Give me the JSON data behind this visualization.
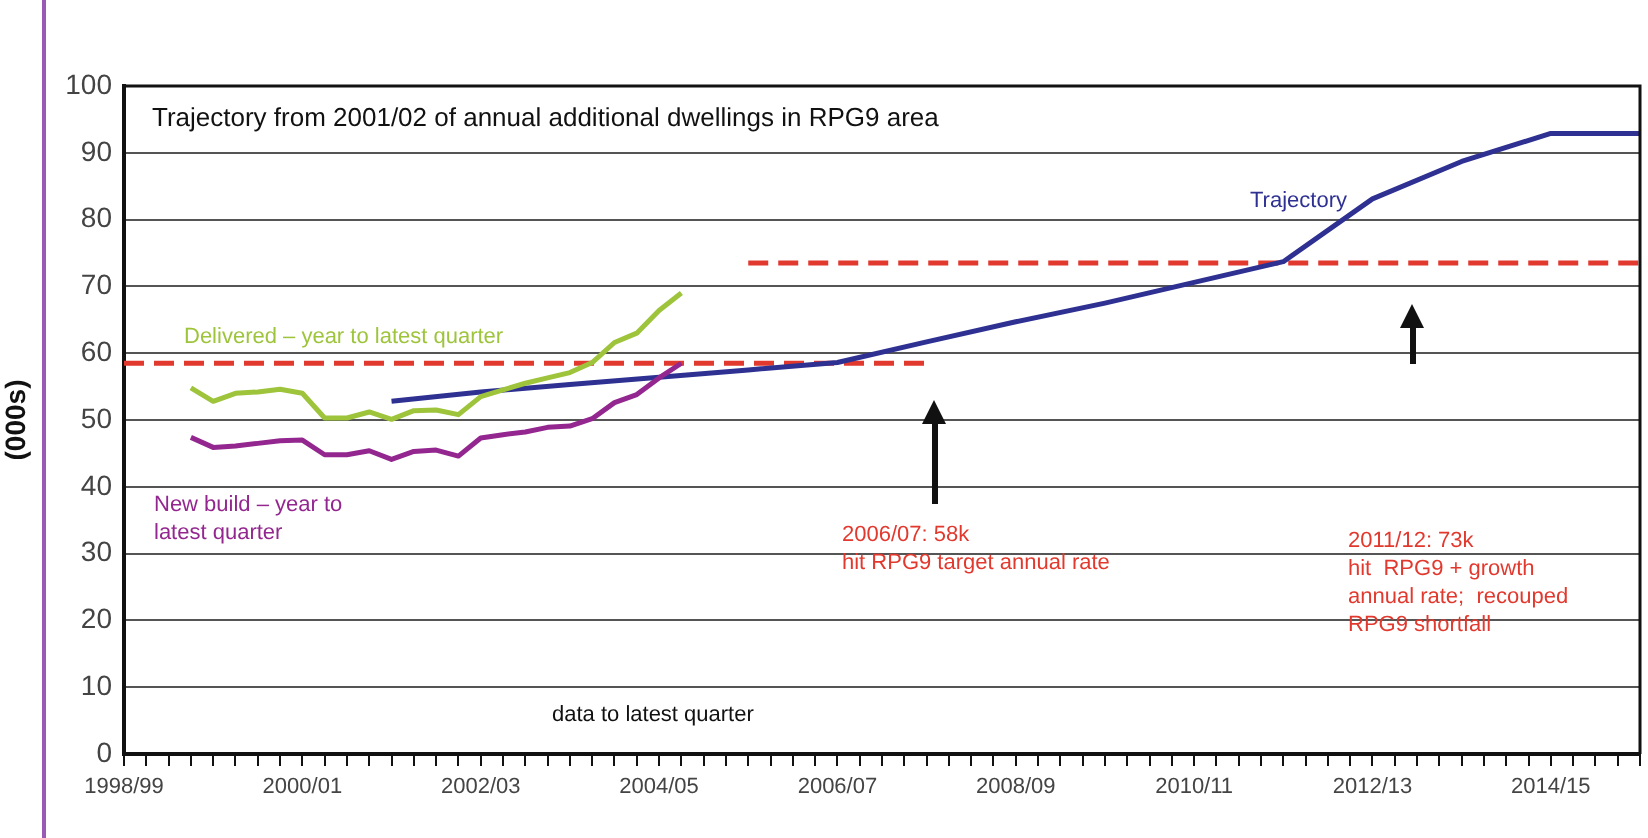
{
  "chart_data": {
    "type": "line",
    "title": "Trajectory from 2001/02 of annual additional dwellings in RPG9 area",
    "ylabel": "(000s)",
    "categories": [
      "1998/99",
      null,
      null,
      null,
      null,
      null,
      null,
      null,
      "2000/01",
      null,
      null,
      null,
      null,
      null,
      null,
      null,
      "2002/03",
      null,
      null,
      null,
      null,
      null,
      null,
      null,
      "2004/05",
      null,
      null,
      null,
      null,
      null,
      null,
      null,
      "2006/07",
      null,
      null,
      null,
      null,
      null,
      null,
      null,
      "2008/09",
      null,
      null,
      null,
      null,
      null,
      null,
      null,
      "2010/11",
      null,
      null,
      null,
      null,
      null,
      null,
      null,
      "2012/13",
      null,
      null,
      null,
      null,
      null,
      null,
      null,
      "2014/15",
      null,
      null,
      null,
      null
    ],
    "series": [
      {
        "name": "Delivered – year to latest quarter",
        "color": "#9dc43b",
        "values": [
          null,
          null,
          null,
          54.8,
          52.8,
          54.0,
          54.2,
          54.6,
          54.0,
          50.3,
          50.3,
          51.2,
          50.1,
          51.4,
          51.5,
          50.8,
          53.5,
          54.5,
          55.5,
          56.3,
          57.1,
          58.6,
          61.6,
          63.0,
          66.4,
          69.0,
          null,
          null,
          null,
          null,
          null,
          null,
          null,
          null,
          null,
          null,
          null,
          null,
          null,
          null,
          null,
          null,
          null,
          null,
          null,
          null,
          null,
          null,
          null,
          null,
          null,
          null,
          null,
          null,
          null,
          null,
          null,
          null,
          null,
          null,
          null,
          null,
          null,
          null,
          null,
          null,
          null,
          null,
          null
        ]
      },
      {
        "name": "New build – year to latest quarter",
        "color": "#93278f",
        "values": [
          null,
          null,
          null,
          47.4,
          45.9,
          46.1,
          46.5,
          46.9,
          47.0,
          44.8,
          44.8,
          45.4,
          44.1,
          45.3,
          45.5,
          44.6,
          47.3,
          47.8,
          48.2,
          48.9,
          49.1,
          50.2,
          52.6,
          53.8,
          56.3,
          58.5,
          null,
          null,
          null,
          null,
          null,
          null,
          null,
          null,
          null,
          null,
          null,
          null,
          null,
          null,
          null,
          null,
          null,
          null,
          null,
          null,
          null,
          null,
          null,
          null,
          null,
          null,
          null,
          null,
          null,
          null,
          null,
          null,
          null,
          null,
          null,
          null,
          null,
          null,
          null,
          null,
          null,
          null,
          null
        ]
      },
      {
        "name": "Trajectory",
        "color": "#2e3192",
        "values": [
          null,
          null,
          null,
          null,
          null,
          null,
          null,
          null,
          null,
          null,
          null,
          null,
          52.8,
          null,
          null,
          null,
          54.2,
          null,
          null,
          null,
          55.3,
          null,
          null,
          null,
          56.4,
          null,
          null,
          null,
          57.5,
          null,
          null,
          null,
          58.6,
          null,
          null,
          null,
          61.7,
          null,
          null,
          null,
          64.7,
          null,
          null,
          null,
          67.5,
          null,
          null,
          null,
          70.6,
          null,
          null,
          null,
          73.7,
          null,
          null,
          null,
          83.1,
          null,
          null,
          null,
          88.7,
          null,
          null,
          null,
          92.9,
          null,
          null,
          null,
          92.9
        ]
      },
      {
        "color": "#e2392e",
        "line_style": "dashed",
        "values": [
          58.5,
          null,
          null,
          null,
          null,
          null,
          null,
          null,
          null,
          null,
          null,
          null,
          null,
          null,
          null,
          null,
          null,
          null,
          null,
          null,
          null,
          null,
          null,
          null,
          null,
          null,
          null,
          null,
          null,
          null,
          null,
          null,
          null,
          null,
          null,
          null,
          58.5,
          null,
          null,
          null,
          null,
          null,
          null,
          null,
          null,
          null,
          null,
          null,
          null,
          null,
          null,
          null,
          null,
          null,
          null,
          null,
          null,
          null,
          null,
          null,
          null,
          null,
          null,
          null,
          null,
          null,
          null,
          null,
          null
        ]
      },
      {
        "color": "#e2392e",
        "line_style": "dashed",
        "values": [
          null,
          null,
          null,
          null,
          null,
          null,
          null,
          null,
          null,
          null,
          null,
          null,
          null,
          null,
          null,
          null,
          null,
          null,
          null,
          null,
          null,
          null,
          null,
          null,
          null,
          null,
          null,
          null,
          73.5,
          null,
          null,
          null,
          null,
          null,
          null,
          null,
          null,
          null,
          null,
          null,
          null,
          null,
          null,
          null,
          null,
          null,
          null,
          null,
          null,
          null,
          null,
          null,
          null,
          null,
          null,
          null,
          null,
          null,
          null,
          null,
          null,
          null,
          null,
          null,
          null,
          null,
          null,
          null,
          73.5
        ]
      }
    ],
    "ylim": [
      0,
      100
    ],
    "yticks": [
      0,
      10,
      20,
      30,
      40,
      50,
      60,
      70,
      80,
      90,
      100
    ],
    "grid": "y",
    "legend": false,
    "marker": "none",
    "line_style": "solid",
    "annotations": [
      "data to latest quarter",
      "2006/07: 58k\nhit RPG9 target annual rate",
      "2011/12: 73k\nhit  RPG9 + growth\nannual rate;  recouped\nRPG9 shortfall"
    ]
  }
}
